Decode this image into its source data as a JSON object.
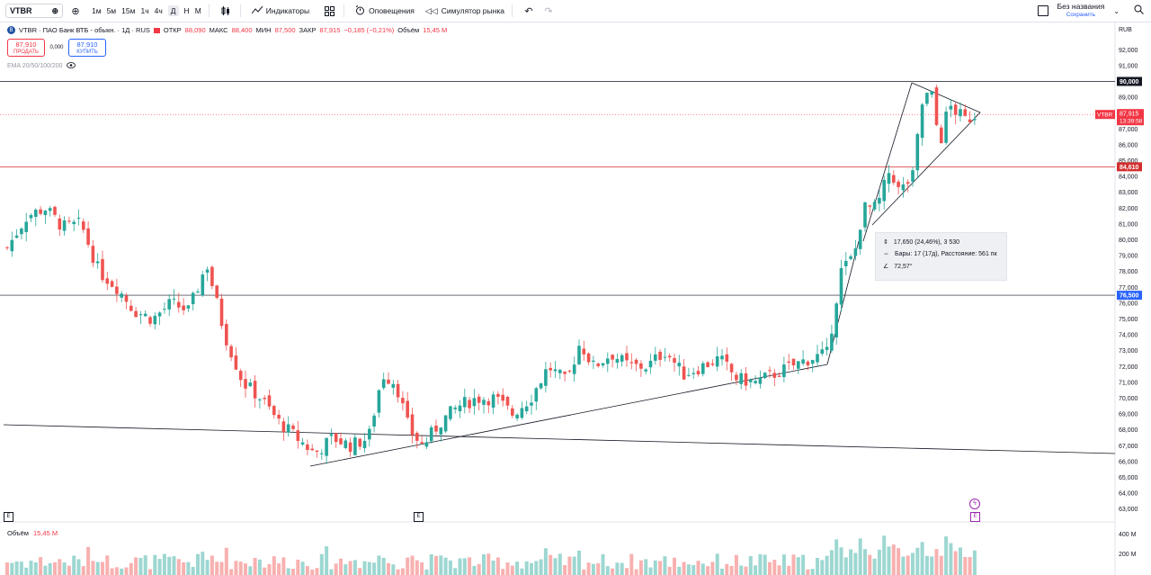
{
  "toolbar": {
    "symbol": "VTBR",
    "timeframes": [
      "1м",
      "5м",
      "15м",
      "1ч",
      "4ч",
      "Д",
      "Н",
      "М"
    ],
    "active_timeframe": "Д",
    "indicators_label": "Индикаторы",
    "alerts_label": "Оповещения",
    "replay_label": "Симулятор рынка",
    "layout_name": "Без названия",
    "layout_save": "Сохранить"
  },
  "legend": {
    "title": "VTBR · ПАО Банк ВТБ - обыкн. · 1Д · RUS",
    "open_label": "ОТКР",
    "open": "88,090",
    "high_label": "МАКС",
    "high": "88,400",
    "low_label": "МИН",
    "low": "87,500",
    "close_label": "ЗАКР",
    "close": "87,915",
    "change": "−0,185 (−0,21%)",
    "volume_label": "Объём",
    "volume": "15,45 M"
  },
  "trade": {
    "sell_price": "87,910",
    "sell_label": "ПРОДАТЬ",
    "spread": "0,000",
    "buy_price": "87,910",
    "buy_label": "КУПИТЬ"
  },
  "ema_label": "EMA 20/50/100/200",
  "currency": "RUB",
  "axis_ticks": [
    "92,000",
    "91,000",
    "90,000",
    "89,000",
    "88,000",
    "87,000",
    "86,000",
    "85,000",
    "84,000",
    "83,000",
    "82,000",
    "81,000",
    "80,000",
    "79,000",
    "78,000",
    "77,000",
    "76,000",
    "75,000",
    "74,000",
    "73,000",
    "72,000",
    "71,000",
    "70,000",
    "69,000",
    "68,000",
    "67,000",
    "66,000",
    "65,000",
    "64,000",
    "63,000"
  ],
  "price_labels": {
    "level_90": "90,000",
    "current_symbol": "VTBR",
    "current_price": "87,915",
    "countdown": "13:39:58",
    "level_846": "84,610",
    "level_765": "76,500"
  },
  "measure": {
    "change": "17,650 (24,46%), 3 530",
    "bars": "Бары: 17 (17д), Расстояние: 561 пк",
    "angle": "72,57°"
  },
  "volume_pane": {
    "label": "Объём",
    "value": "15,45 M",
    "ticks": [
      "400 M",
      "200 M"
    ]
  },
  "colors": {
    "up": "#26a69a",
    "down": "#ef5350",
    "accent": "#2962ff"
  }
}
